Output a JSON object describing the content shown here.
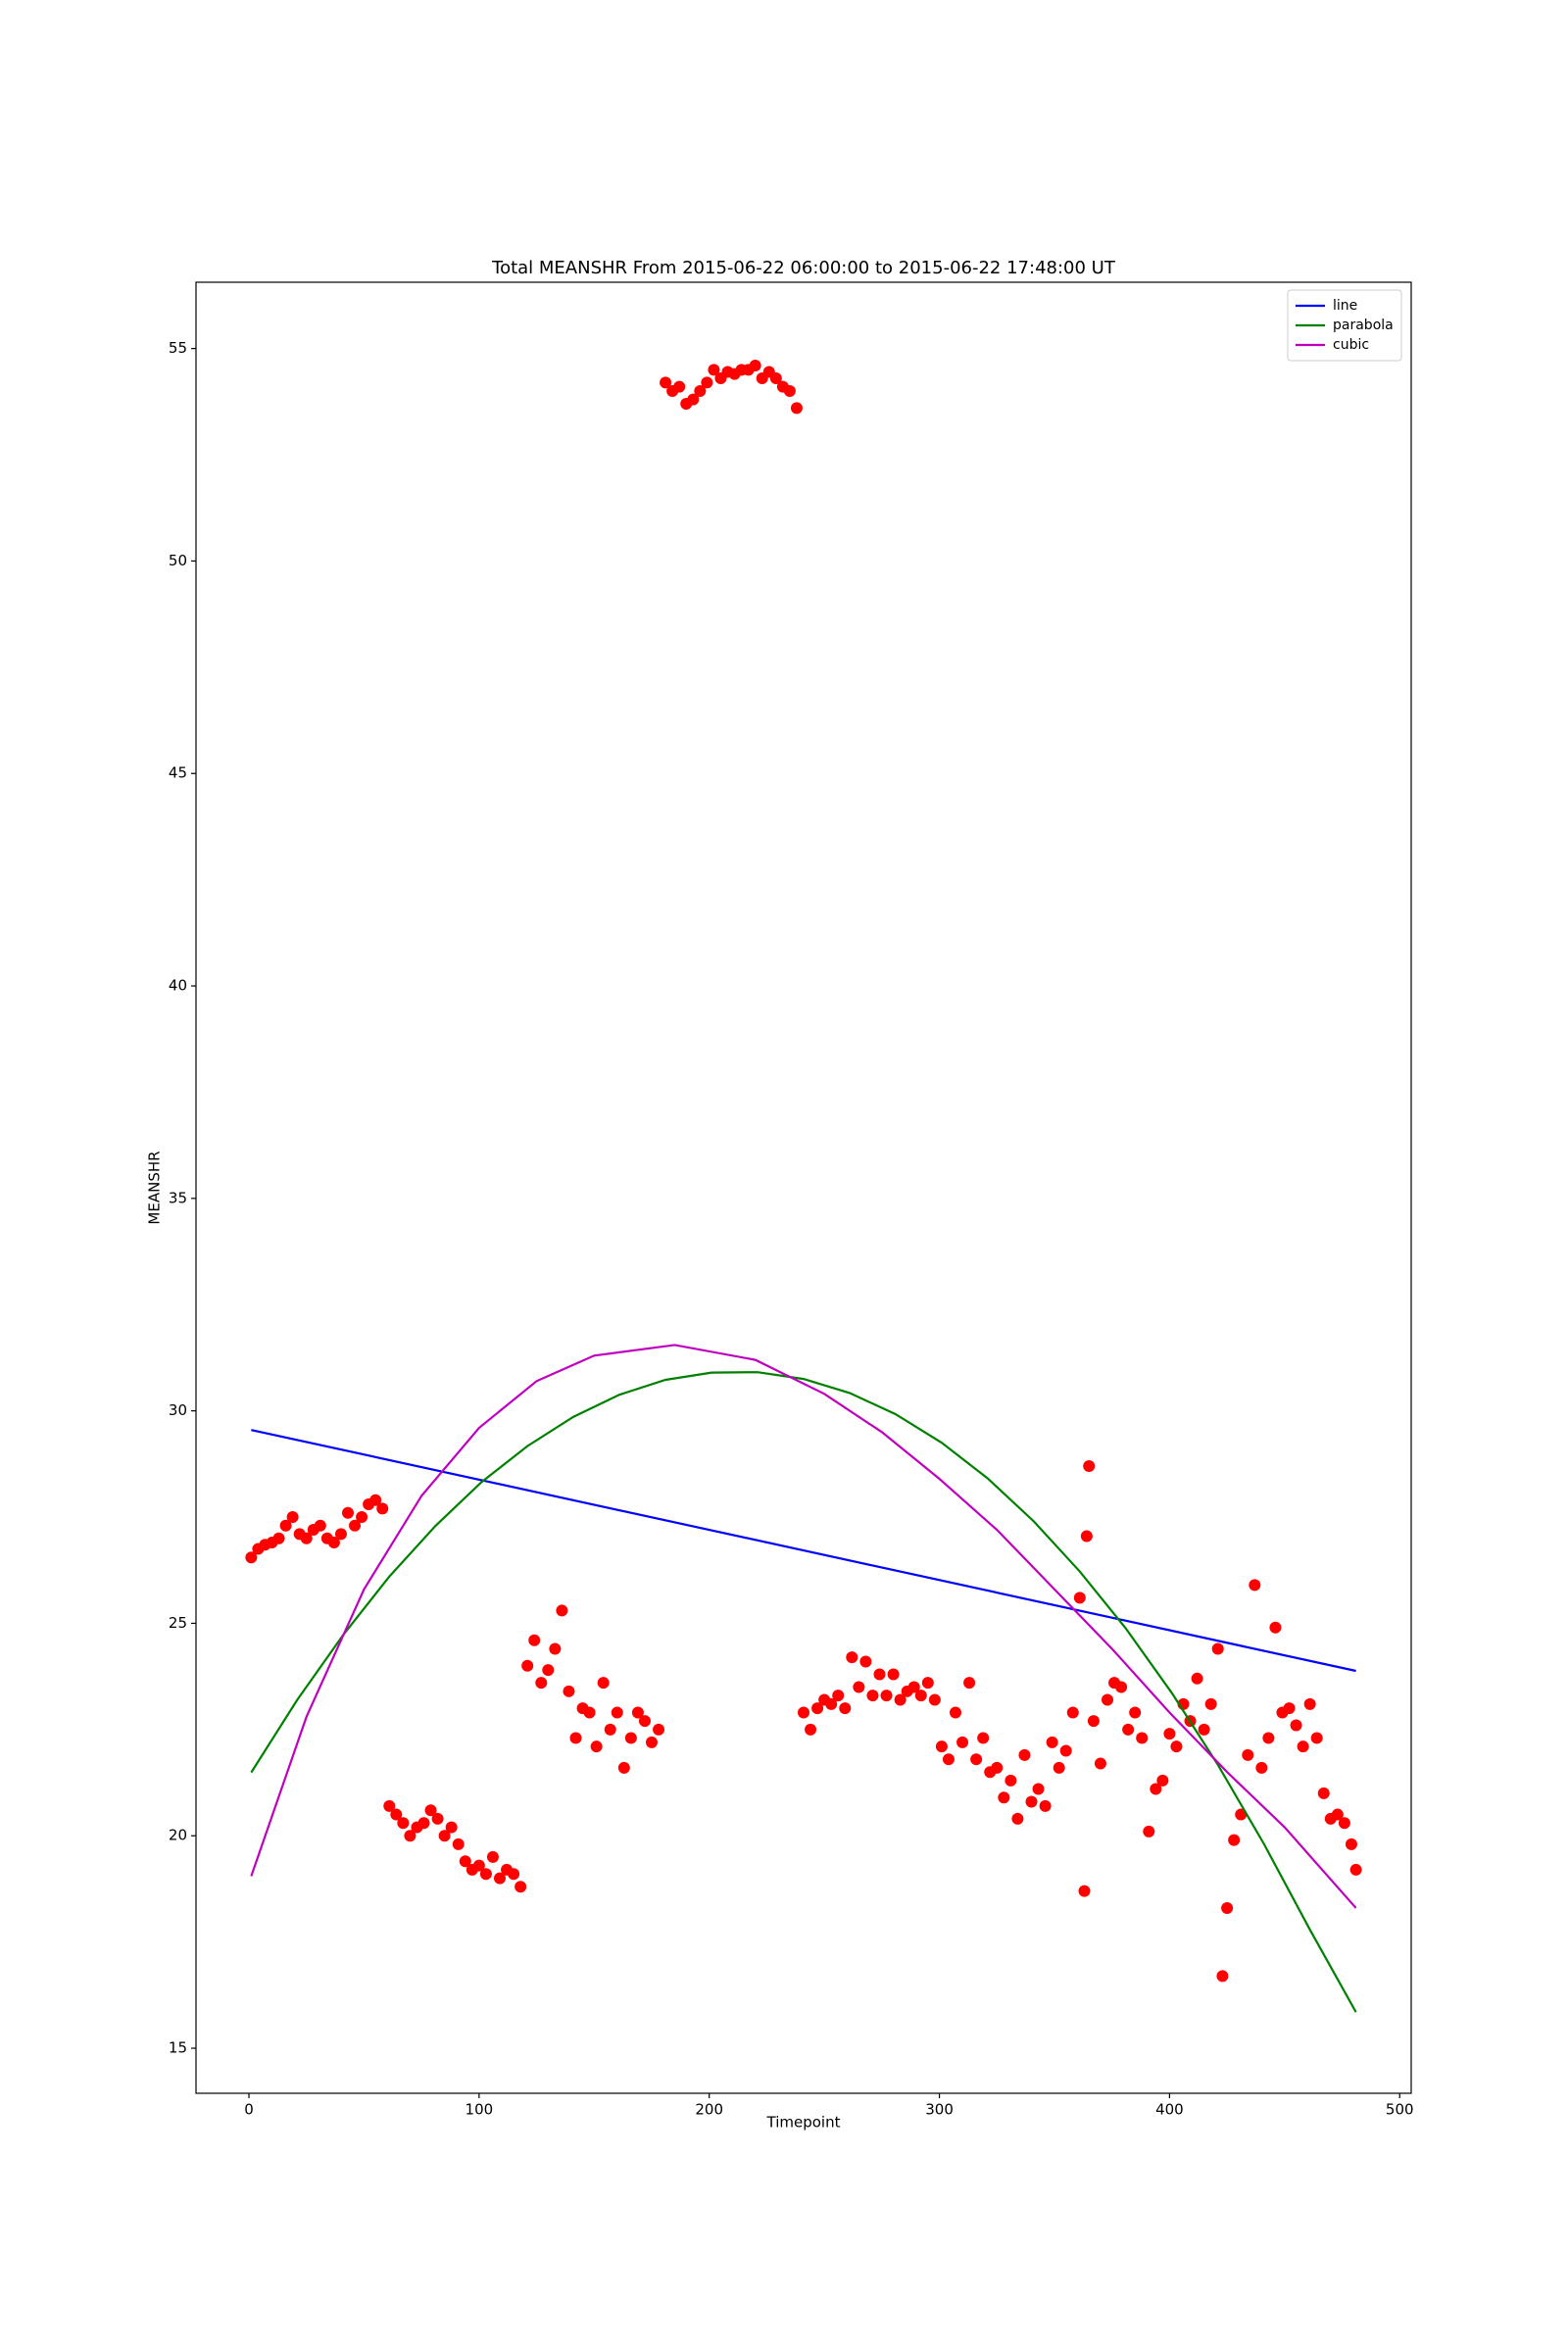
{
  "chart_data": {
    "type": "scatter",
    "title": "Total MEANSHR From 2015-06-22 06:00:00 to 2015-06-22 17:48:00 UT",
    "x_label": "Timepoint",
    "y_label": "MEANSHR",
    "xlim": [
      -23,
      505
    ],
    "ylim": [
      13.94,
      56.56
    ],
    "xticks": [
      0,
      100,
      200,
      300,
      400,
      500
    ],
    "yticks": [
      15,
      20,
      25,
      30,
      35,
      40,
      45,
      50,
      55
    ],
    "legend": "upper right",
    "series": [
      {
        "type": "scatter",
        "color": "#ff0000",
        "x": [
          1,
          4,
          7,
          10,
          13,
          16,
          19,
          22,
          25,
          28,
          31,
          34,
          37,
          40,
          43,
          46,
          49,
          52,
          55,
          58,
          61,
          64,
          67,
          70,
          73,
          76,
          79,
          82,
          85,
          88,
          91,
          94,
          97,
          100,
          103,
          106,
          109,
          112,
          115,
          118,
          121,
          124,
          127,
          130,
          133,
          136,
          139,
          142,
          145,
          148,
          151,
          154,
          157,
          160,
          163,
          166,
          169,
          172,
          175,
          178,
          181,
          184,
          187,
          190,
          193,
          196,
          199,
          202,
          205,
          208,
          211,
          214,
          217,
          220,
          223,
          226,
          229,
          232,
          235,
          238,
          241,
          244,
          247,
          250,
          253,
          256,
          259,
          262,
          265,
          268,
          271,
          274,
          277,
          280,
          283,
          286,
          289,
          292,
          295,
          298,
          301,
          304,
          307,
          310,
          313,
          316,
          319,
          322,
          325,
          328,
          331,
          334,
          337,
          340,
          343,
          346,
          349,
          352,
          355,
          358,
          361,
          363,
          364,
          365,
          367,
          370,
          373,
          376,
          379,
          382,
          385,
          388,
          391,
          394,
          397,
          400,
          403,
          406,
          409,
          412,
          415,
          418,
          421,
          423,
          425,
          428,
          431,
          434,
          437,
          440,
          443,
          446,
          449,
          452,
          455,
          458,
          461,
          464,
          467,
          470,
          473,
          476,
          479,
          481
        ],
        "values": [
          26.55,
          26.75,
          26.85,
          26.9,
          27.0,
          27.3,
          27.5,
          27.1,
          27.0,
          27.2,
          27.3,
          27.0,
          26.9,
          27.1,
          27.6,
          27.3,
          27.5,
          27.8,
          27.9,
          27.7,
          20.7,
          20.5,
          20.3,
          20.0,
          20.2,
          20.3,
          20.6,
          20.4,
          20.0,
          20.2,
          19.8,
          19.4,
          19.2,
          19.3,
          19.1,
          19.5,
          19.0,
          19.2,
          19.1,
          18.8,
          24.0,
          24.6,
          23.6,
          23.9,
          24.4,
          25.3,
          23.4,
          22.3,
          23.0,
          22.9,
          22.1,
          23.6,
          22.5,
          22.9,
          21.6,
          22.3,
          22.9,
          22.7,
          22.2,
          22.5,
          54.2,
          54.0,
          54.1,
          53.7,
          53.8,
          54.0,
          54.2,
          54.5,
          54.3,
          54.45,
          54.4,
          54.5,
          54.5,
          54.6,
          54.3,
          54.45,
          54.3,
          54.1,
          54.0,
          53.6,
          22.9,
          22.5,
          23.0,
          23.2,
          23.1,
          23.3,
          23.0,
          24.2,
          23.5,
          24.1,
          23.3,
          23.8,
          23.3,
          23.8,
          23.2,
          23.4,
          23.5,
          23.3,
          23.6,
          23.2,
          22.1,
          21.8,
          22.9,
          22.2,
          23.6,
          21.8,
          22.3,
          21.5,
          21.6,
          20.9,
          21.3,
          20.4,
          21.9,
          20.8,
          21.1,
          20.7,
          22.2,
          21.6,
          22.0,
          22.9,
          25.6,
          18.7,
          27.05,
          28.7,
          22.7,
          21.7,
          23.2,
          23.6,
          23.5,
          22.5,
          22.9,
          22.3,
          20.1,
          21.1,
          21.3,
          22.4,
          22.1,
          23.1,
          22.7,
          23.7,
          22.5,
          23.1,
          24.4,
          16.7,
          18.3,
          19.9,
          20.5,
          21.9,
          25.9,
          21.6,
          22.3,
          24.9,
          22.9,
          23.0,
          22.6,
          22.1,
          23.1,
          22.3,
          21.0,
          20.4,
          20.5,
          20.3,
          19.8,
          19.2
        ]
      },
      {
        "type": "line",
        "name": "line",
        "color": "#0000ff",
        "x": [
          1,
          481
        ],
        "values": [
          29.55,
          23.88
        ]
      },
      {
        "type": "line",
        "name": "parabola",
        "color": "#008000",
        "x": [
          1,
          21,
          41,
          61,
          81,
          101,
          121,
          141,
          161,
          181,
          201,
          221,
          241,
          261,
          281,
          301,
          321,
          341,
          361,
          381,
          401,
          421,
          441,
          461,
          481
        ],
        "values": [
          21.49,
          23.2,
          24.73,
          26.1,
          27.29,
          28.32,
          29.17,
          29.86,
          30.38,
          30.73,
          30.9,
          30.91,
          30.75,
          30.42,
          29.92,
          29.25,
          28.41,
          27.4,
          26.22,
          24.88,
          23.36,
          21.67,
          19.81,
          17.79,
          15.85
        ]
      },
      {
        "type": "line",
        "name": "cubic",
        "color": "#bf00bf",
        "x": [
          1,
          25,
          50,
          75,
          100,
          125,
          150,
          185,
          220,
          250,
          275,
          300,
          325,
          350,
          375,
          400,
          425,
          450,
          481
        ],
        "values": [
          19.05,
          22.8,
          25.8,
          28.0,
          29.6,
          30.7,
          31.3,
          31.55,
          31.2,
          30.4,
          29.5,
          28.4,
          27.2,
          25.8,
          24.4,
          22.9,
          21.5,
          20.2,
          18.3
        ]
      }
    ]
  }
}
